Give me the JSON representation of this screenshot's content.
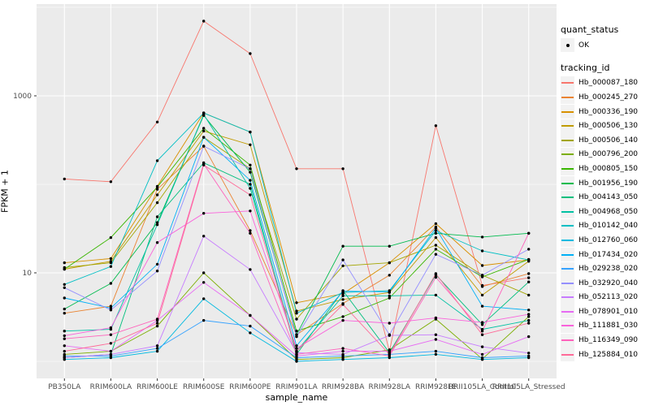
{
  "chart_data": {
    "type": "line",
    "title": "",
    "xlabel": "sample_name",
    "ylabel": "FPKM + 1",
    "y_scale": "log10",
    "y_axis_ticks": [
      1000,
      10
    ],
    "y_minor_gridlines": [
      10000,
      100,
      1
    ],
    "ylim_log": [
      1,
      10000
    ],
    "grid": true,
    "legend_position": "right",
    "point_color": "#000000",
    "panel_background": "#EBEBEB",
    "gridline_color": "#FFFFFF",
    "categories": [
      "PB350LA",
      "RRIM600LA",
      "RRIM600LE",
      "RRIM600SE",
      "RRIM600PE",
      "RRIM901LA",
      "RRIM928BA",
      "RRIM928LA",
      "RRIM928LE",
      "RRII105LA_Control",
      "RRII105LA_Stressed"
    ],
    "series": [
      {
        "name": "Hb_000087_180",
        "color": "#F8766D",
        "values": [
          115,
          107,
          505,
          6980,
          3000,
          150,
          150,
          1.3,
          460,
          7.2,
          8.8
        ]
      },
      {
        "name": "Hb_000245_270",
        "color": "#EA8331",
        "values": [
          3.5,
          4.2,
          88,
          270,
          30,
          2.0,
          4.5,
          9.4,
          33,
          7.0,
          9.8
        ]
      },
      {
        "name": "Hb_000336_190",
        "color": "#D89000",
        "values": [
          13,
          14.5,
          95,
          640,
          390,
          4.6,
          5.8,
          13,
          36,
          12.1,
          14
        ]
      },
      {
        "name": "Hb_000506_130",
        "color": "#C09B00",
        "values": [
          11,
          13.5,
          76,
          400,
          280,
          3.7,
          5.0,
          6.0,
          25,
          5.6,
          13.5
        ]
      },
      {
        "name": "Hb_000506_140",
        "color": "#A3A500",
        "values": [
          11.5,
          13,
          62,
          340,
          150,
          3.0,
          12,
          13,
          20.5,
          9.4,
          5.6
        ]
      },
      {
        "name": "Hb_000796_200",
        "color": "#7CAE00",
        "values": [
          1.2,
          1.3,
          2.5,
          10,
          3.3,
          1.05,
          1.1,
          1.35,
          3.0,
          1.06,
          3.2
        ]
      },
      {
        "name": "Hb_000805_150",
        "color": "#39B600",
        "values": [
          11,
          25,
          93,
          430,
          165,
          2.2,
          3.2,
          5.2,
          18.5,
          9.0,
          14.2
        ]
      },
      {
        "name": "Hb_001956_190",
        "color": "#00BB4E",
        "values": [
          3.9,
          7.6,
          37,
          600,
          137,
          2.0,
          20,
          20,
          28,
          25.4,
          28
        ]
      },
      {
        "name": "Hb_004143_050",
        "color": "#00BF7D",
        "values": [
          1.1,
          1.2,
          43,
          175,
          100,
          1.2,
          6.3,
          1.25,
          9.5,
          2.6,
          7.9
        ]
      },
      {
        "name": "Hb_004968_050",
        "color": "#00C1A3",
        "values": [
          2.2,
          2.3,
          35,
          615,
          90,
          1.3,
          5.5,
          5.5,
          5.6,
          2.3,
          2.9
        ]
      },
      {
        "name": "Hb_010142_040",
        "color": "#00BFC4",
        "values": [
          7.4,
          11.8,
          185,
          640,
          390,
          3.5,
          6.0,
          6.3,
          30,
          17.7,
          14
        ]
      },
      {
        "name": "Hb_012760_060",
        "color": "#00BAE0",
        "values": [
          1.05,
          1.1,
          1.3,
          5.1,
          2.1,
          1.0,
          1.05,
          1.1,
          1.2,
          1.05,
          1.1
        ]
      },
      {
        "name": "Hb_017434_020",
        "color": "#00B0F6",
        "values": [
          5.2,
          4.0,
          12.5,
          340,
          111,
          1.5,
          6.2,
          6.1,
          32,
          4.2,
          3.8
        ]
      },
      {
        "name": "Hb_029238_020",
        "color": "#35A2FF",
        "values": [
          1.15,
          1.15,
          1.4,
          2.9,
          2.5,
          1.1,
          1.15,
          1.2,
          1.3,
          1.1,
          1.15
        ]
      },
      {
        "name": "Hb_032920_040",
        "color": "#9590FF",
        "values": [
          6.8,
          3.8,
          10.5,
          270,
          150,
          1.9,
          14,
          2.0,
          16.2,
          9.4,
          18.5
        ]
      },
      {
        "name": "Hb_052113_020",
        "color": "#C77CFF",
        "values": [
          1.1,
          1.2,
          1.5,
          26,
          10.9,
          1.25,
          1.2,
          1.96,
          2.0,
          1.46,
          1.24
        ]
      },
      {
        "name": "Hb_078901_010",
        "color": "#E76BF3",
        "values": [
          1.5,
          1.3,
          2.9,
          7.8,
          3.3,
          1.15,
          1.3,
          1.3,
          1.77,
          1.2,
          1.9
        ]
      },
      {
        "name": "Hb_111881_030",
        "color": "#FA62DB",
        "values": [
          1.95,
          2.4,
          22,
          47,
          50,
          1.4,
          2.9,
          2.7,
          3.1,
          2.75,
          3.4
        ]
      },
      {
        "name": "Hb_116349_090",
        "color": "#FF62BC",
        "values": [
          1.8,
          2.0,
          3.0,
          170,
          28,
          1.2,
          1.4,
          1.15,
          8.9,
          2.2,
          28
        ]
      },
      {
        "name": "Hb_125884_010",
        "color": "#FF6A98",
        "values": [
          1.3,
          1.6,
          2.7,
          165,
          76,
          1.3,
          4.4,
          1.2,
          9.8,
          2.0,
          2.7
        ]
      }
    ]
  },
  "legend": {
    "quant_status": {
      "title": "quant_status",
      "items": [
        {
          "label": "OK",
          "marker": "point"
        }
      ]
    },
    "tracking_id": {
      "title": "tracking_id"
    }
  }
}
